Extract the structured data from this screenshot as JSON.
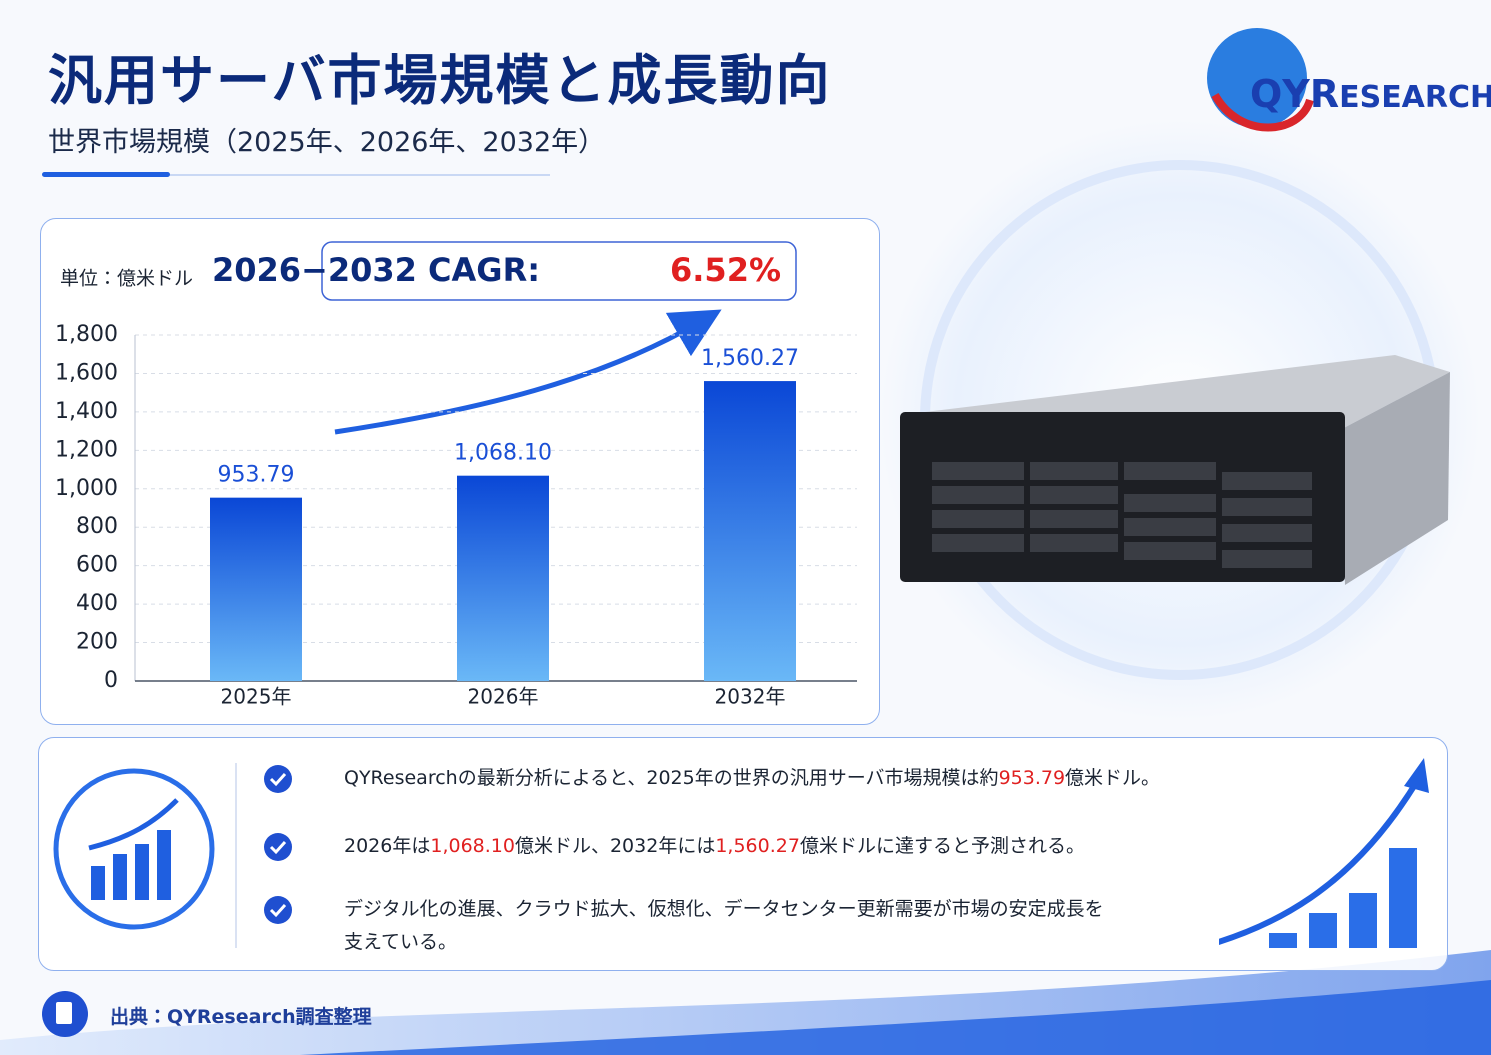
{
  "header": {
    "title": "汎用サーバ市場規模と成長動向",
    "subtitle": "世界市場規模（2025年、2026年、2032年）",
    "logo": [
      "QYR",
      "ESEARCH"
    ]
  },
  "chart_data": {
    "type": "bar",
    "unit": "単位：億米ドル",
    "cagr_label": "2026−2032 CAGR:",
    "cagr_value": "6.52%",
    "categories": [
      "2025年",
      "2026年",
      "2032年"
    ],
    "values": [
      953.79,
      1068.1,
      1560.27
    ],
    "value_labels": [
      "953.79",
      "1,068.10",
      "1,560.27"
    ],
    "color": "#0a47d6",
    "ylim": [
      0,
      1800
    ],
    "yticks": [
      0,
      200,
      400,
      600,
      800,
      {
        "value": 1000,
        "label": "1,000"
      },
      {
        "value": 1200,
        "label": "1,200"
      },
      {
        "value": 1400,
        "label": "1,400"
      },
      {
        "value": 1600,
        "label": "1,600"
      },
      {
        "value": 1800,
        "label": "1,800"
      }
    ],
    "grid": true
  },
  "notes": [
    [
      {
        "text": "QYResearchの最新分析によると、2025年の世界の汎用サーバ市場規模は約"
      },
      {
        "text": "953.79",
        "color": "#e02020"
      },
      {
        "text": "億米ドル。"
      }
    ],
    [
      {
        "text": "2026年は"
      },
      {
        "text": "1,068.10",
        "color": "#e02020"
      },
      {
        "text": "億米ドル、2032年には"
      },
      {
        "text": "1,560.27",
        "color": "#e02020"
      },
      {
        "text": "億米ドルに達すると予測される。"
      }
    ],
    [
      {
        "text": "デジタル化の進展、クラウド拡大、仮想化、データセンター更新需要が市場の安定成長を支えている。"
      }
    ]
  ],
  "source": "出典：QYResearch調査整理"
}
